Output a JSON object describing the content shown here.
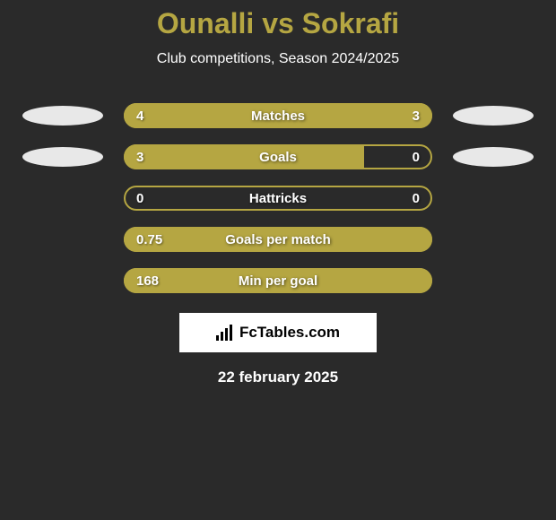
{
  "title": "Ounalli vs Sokrafi",
  "subtitle": "Club competitions, Season 2024/2025",
  "date": "22 february 2025",
  "logo_text": "FcTables.com",
  "colors": {
    "background": "#2a2a2a",
    "accent": "#b5a642",
    "text": "#ffffff",
    "ellipse": "#e8e8e8",
    "logo_bg": "#ffffff",
    "logo_text": "#000000"
  },
  "stats": [
    {
      "label": "Matches",
      "left_value": "4",
      "right_value": "3",
      "left_pct": 57,
      "right_pct": 43,
      "show_icons": true,
      "fill_type": "full"
    },
    {
      "label": "Goals",
      "left_value": "3",
      "right_value": "0",
      "left_pct": 78,
      "right_pct": 0,
      "show_icons": true,
      "fill_type": "left"
    },
    {
      "label": "Hattricks",
      "left_value": "0",
      "right_value": "0",
      "left_pct": 0,
      "right_pct": 0,
      "show_icons": false,
      "fill_type": "none"
    },
    {
      "label": "Goals per match",
      "left_value": "0.75",
      "right_value": "",
      "left_pct": 100,
      "right_pct": 0,
      "show_icons": false,
      "fill_type": "full"
    },
    {
      "label": "Min per goal",
      "left_value": "168",
      "right_value": "",
      "left_pct": 100,
      "right_pct": 0,
      "show_icons": false,
      "fill_type": "full"
    }
  ]
}
